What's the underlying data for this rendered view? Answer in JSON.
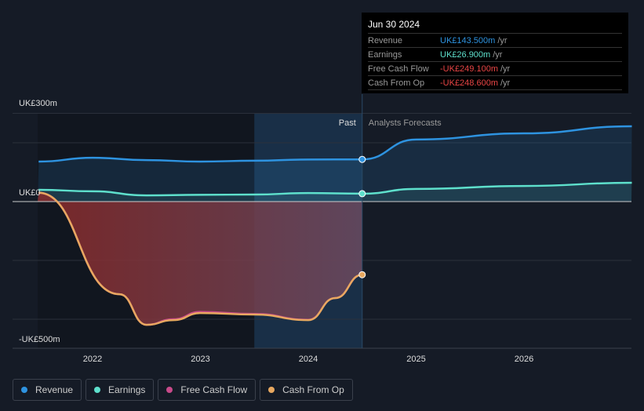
{
  "tooltip": {
    "date": "Jun 30 2024",
    "rows": [
      {
        "label": "Revenue",
        "value": "UK£143.500m",
        "unit": "/yr",
        "color": "#2e93e0"
      },
      {
        "label": "Earnings",
        "value": "UK£26.900m",
        "unit": "/yr",
        "color": "#5ee0cc"
      },
      {
        "label": "Free Cash Flow",
        "value": "-UK£249.100m",
        "unit": "/yr",
        "color": "#e84545"
      },
      {
        "label": "Cash From Op",
        "value": "-UK£248.600m",
        "unit": "/yr",
        "color": "#e84545"
      }
    ]
  },
  "chart_data": {
    "type": "line",
    "ylabel": "",
    "ylim": [
      -500,
      300
    ],
    "xlim": [
      2021.5,
      2027
    ],
    "y_tick_labels": [
      "UK£300m",
      "UK£0",
      "-UK£500m"
    ],
    "x_ticks": [
      "2022",
      "2023",
      "2024",
      "2025",
      "2026"
    ],
    "past_label": "Past",
    "forecast_label": "Analysts Forecasts",
    "divider_x": 2024.5,
    "series": [
      {
        "name": "Revenue",
        "color": "#2e93e0",
        "x": [
          2021.5,
          2022,
          2022.5,
          2023,
          2023.5,
          2024,
          2024.5,
          2025,
          2026,
          2027
        ],
        "values": [
          136,
          149,
          141,
          136,
          139,
          143,
          143.5,
          211,
          232,
          256
        ]
      },
      {
        "name": "Earnings",
        "color": "#5ee0cc",
        "x": [
          2021.5,
          2022,
          2022.5,
          2023,
          2023.5,
          2024,
          2024.5,
          2025,
          2026,
          2027
        ],
        "values": [
          40,
          35,
          21,
          23,
          24,
          29,
          26.9,
          43,
          53,
          64
        ]
      },
      {
        "name": "Free Cash Flow",
        "color": "#c84a8a",
        "x": [
          2021.5,
          2022.25,
          2022.5,
          2022.75,
          2023,
          2023.5,
          2024,
          2024.25,
          2024.5
        ],
        "values": [
          30,
          -315,
          -419,
          -400,
          -375,
          -382,
          -402,
          -328,
          -249.1
        ]
      },
      {
        "name": "Cash From Op",
        "color": "#e8a860",
        "x": [
          2021.5,
          2022.25,
          2022.5,
          2022.75,
          2023,
          2023.5,
          2024,
          2024.25,
          2024.5
        ],
        "values": [
          30,
          -315,
          -419,
          -403,
          -379,
          -384,
          -403,
          -328,
          -248.6
        ]
      }
    ]
  },
  "legend": [
    "Revenue",
    "Earnings",
    "Free Cash Flow",
    "Cash From Op"
  ]
}
